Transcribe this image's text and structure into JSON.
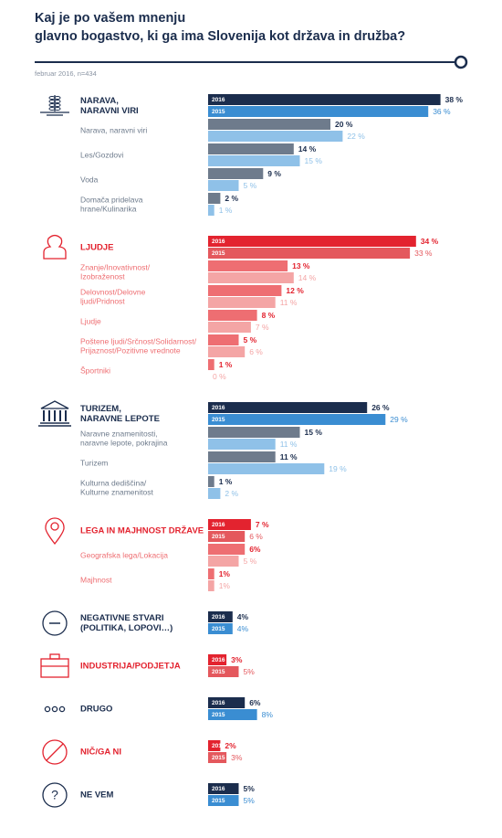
{
  "chart_data": {
    "type": "paired-bar",
    "title": [
      "Kaj je po vašem mnenju",
      "glavno bogastvo, ki ga ima Slovenija kot država in družba?"
    ],
    "subtitle": "februar 2016, n=434",
    "years": [
      "2016",
      "2015"
    ],
    "groups": [
      {
        "label": [
          "NARAVA,",
          "NARAVNI VIRI"
        ],
        "values": [
          38,
          36
        ],
        "value_labels": [
          "38 %",
          "36 %"
        ],
        "colors": [
          "#1b2d4d",
          "#3a8dd2"
        ],
        "item_colors": [
          "#6e7b8c",
          "#8fc1e8"
        ],
        "items": [
          {
            "label": [
              "Narava, naravni viri"
            ],
            "values": [
              20,
              22
            ],
            "value_labels": [
              "20 %",
              "22 %"
            ]
          },
          {
            "label": [
              "Les/Gozdovi"
            ],
            "values": [
              14,
              15
            ],
            "value_labels": [
              "14 %",
              "15 %"
            ]
          },
          {
            "label": [
              "Voda"
            ],
            "values": [
              9,
              5
            ],
            "value_labels": [
              "9 %",
              "5 %"
            ]
          },
          {
            "label": [
              "Domača pridelava",
              "hrane/Kulinarika"
            ],
            "values": [
              2,
              1
            ],
            "value_labels": [
              "2 %",
              "1 %"
            ]
          }
        ]
      },
      {
        "label": [
          "LJUDJE"
        ],
        "values": [
          34,
          33
        ],
        "value_labels": [
          "34 %",
          "33 %"
        ],
        "colors": [
          "#e3232f",
          "#e4585d"
        ],
        "item_colors": [
          "#ee6e72",
          "#f4a5a5"
        ],
        "items": [
          {
            "label": [
              "Znanje/Inovativnost/",
              "Izobraženost"
            ],
            "values": [
              13,
              14
            ],
            "value_labels": [
              "13 %",
              "14 %"
            ]
          },
          {
            "label": [
              "Delovnost/Delovne",
              "ljudi/Pridnost"
            ],
            "values": [
              12,
              11
            ],
            "value_labels": [
              "12 %",
              "11 %"
            ]
          },
          {
            "label": [
              "Ljudje"
            ],
            "values": [
              8,
              7
            ],
            "value_labels": [
              "8 %",
              "7 %"
            ]
          },
          {
            "label": [
              "Poštene ljudi/Srčnost/Solidarnost/",
              "Prijaznost/Pozitivne vrednote"
            ],
            "values": [
              5,
              6
            ],
            "value_labels": [
              "5 %",
              "6 %"
            ]
          },
          {
            "label": [
              "Športniki"
            ],
            "values": [
              1,
              0
            ],
            "value_labels": [
              "1 %",
              "0 %"
            ]
          }
        ]
      },
      {
        "label": [
          "TURIZEM,",
          "NARAVNE LEPOTE"
        ],
        "values": [
          26,
          29
        ],
        "value_labels": [
          "26 %",
          "29 %"
        ],
        "colors": [
          "#1b2d4d",
          "#3a8dd2"
        ],
        "item_colors": [
          "#6e7b8c",
          "#8fc1e8"
        ],
        "items": [
          {
            "label": [
              "Naravne znamenitosti,",
              "naravne lepote, pokrajina"
            ],
            "values": [
              15,
              11
            ],
            "value_labels": [
              "15 %",
              "11 %"
            ]
          },
          {
            "label": [
              "Turizem"
            ],
            "values": [
              11,
              19
            ],
            "value_labels": [
              "11 %",
              "19 %"
            ]
          },
          {
            "label": [
              "Kulturna dediščina/",
              "Kulturne znamenitost"
            ],
            "values": [
              1,
              2
            ],
            "value_labels": [
              "1 %",
              "2 %"
            ]
          }
        ]
      },
      {
        "label": [
          "LEGA IN MAJHNOST DRŽAVE"
        ],
        "values": [
          7,
          6
        ],
        "value_labels": [
          "7 %",
          "6 %"
        ],
        "colors": [
          "#e3232f",
          "#e4585d"
        ],
        "item_colors": [
          "#ee6e72",
          "#f4a5a5"
        ],
        "items": [
          {
            "label": [
              "Geografska lega/Lokacija"
            ],
            "values": [
              6,
              5
            ],
            "value_labels": [
              "6%",
              "5 %"
            ]
          },
          {
            "label": [
              "Majhnost"
            ],
            "values": [
              1,
              1
            ],
            "value_labels": [
              "1%",
              "1%"
            ]
          }
        ]
      },
      {
        "label": [
          "NEGATIVNE STVARI",
          "(POLITIKA, LOPOVI…)"
        ],
        "values": [
          4,
          4
        ],
        "value_labels": [
          "4%",
          "4%"
        ],
        "colors": [
          "#1b2d4d",
          "#3a8dd2"
        ]
      },
      {
        "label": [
          "INDUSTRIJA/PODJETJA"
        ],
        "values": [
          3,
          5
        ],
        "value_labels": [
          "3%",
          "5%"
        ],
        "colors": [
          "#e3232f",
          "#e4585d"
        ]
      },
      {
        "label": [
          "DRUGO"
        ],
        "values": [
          6,
          8
        ],
        "value_labels": [
          "6%",
          "8%"
        ],
        "colors": [
          "#1b2d4d",
          "#3a8dd2"
        ]
      },
      {
        "label": [
          "NIČ/GA NI"
        ],
        "values": [
          2,
          3
        ],
        "value_labels": [
          "2%",
          "3%"
        ],
        "colors": [
          "#e3232f",
          "#e4585d"
        ]
      },
      {
        "label": [
          "NE VEM"
        ],
        "values": [
          5,
          5
        ],
        "value_labels": [
          "5%",
          "5%"
        ],
        "colors": [
          "#1b2d4d",
          "#3a8dd2"
        ]
      }
    ]
  }
}
